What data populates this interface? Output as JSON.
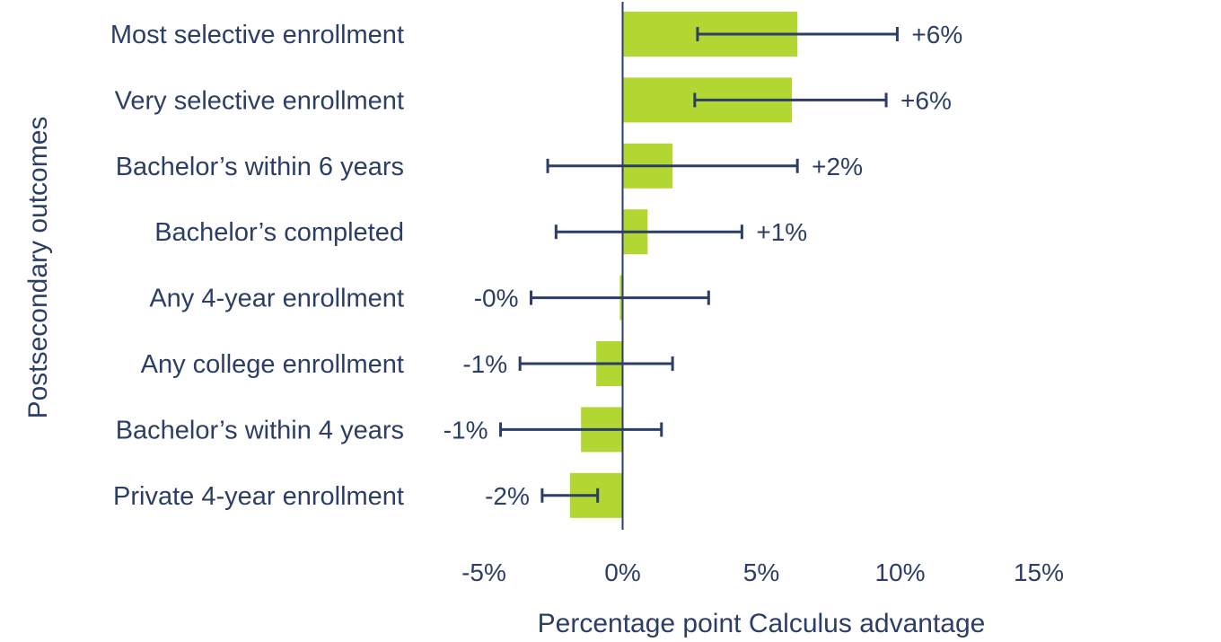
{
  "chart_data": {
    "type": "bar",
    "orientation": "horizontal",
    "categories": [
      "Most selective enrollment",
      "Very selective enrollment",
      "Bachelor’s within 6 years",
      "Bachelor’s completed",
      "Any 4-year enrollment",
      "Any college enrollment",
      "Bachelor’s within 4 years",
      "Private 4-year enrollment"
    ],
    "values": [
      6.3,
      6.1,
      1.8,
      0.9,
      -0.1,
      -0.95,
      -1.5,
      -1.9
    ],
    "error_low": [
      2.7,
      2.6,
      -2.7,
      -2.4,
      -3.3,
      -3.7,
      -4.4,
      -2.9
    ],
    "error_high": [
      9.9,
      9.5,
      6.3,
      4.3,
      3.1,
      1.8,
      1.4,
      -0.9
    ],
    "data_labels": [
      "+6%",
      "+6%",
      "+2%",
      "+1%",
      "-0%",
      "-1%",
      "-1%",
      "-2%"
    ],
    "xlabel": "Percentage point Calculus advantage",
    "ylabel": "Postsecondary outcomes",
    "xlim": [
      -5,
      15
    ],
    "xticks": [
      -5,
      0,
      5,
      10,
      15
    ],
    "xtick_labels": [
      "-5%",
      "0%",
      "5%",
      "10%",
      "15%"
    ],
    "grid": false,
    "colors": {
      "bar": "#b2d732",
      "error": "#2c3e66",
      "axis": "#2c3e66",
      "text": "#2c3e66"
    }
  }
}
